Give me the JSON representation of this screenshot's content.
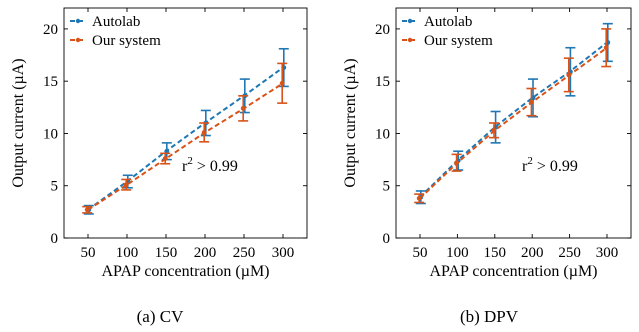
{
  "chart_data": [
    {
      "type": "line",
      "panel": "a",
      "caption": "(a) CV",
      "xlabel": "APAP concentration (µM)",
      "ylabel": "Output current (µA)",
      "x": [
        50,
        100,
        150,
        200,
        250,
        300
      ],
      "xticks": [
        "50",
        "100",
        "150",
        "200",
        "250",
        "300"
      ],
      "yticks": [
        0,
        5,
        10,
        15,
        20
      ],
      "ylim": [
        0,
        22
      ],
      "grid": false,
      "legend_position": "top-left",
      "annotation": {
        "base": "r",
        "sup": "2",
        "rest": " > 0.99"
      },
      "series": [
        {
          "name": "Autolab",
          "color": "#1f77b4",
          "values": [
            2.7,
            5.4,
            8.3,
            11.0,
            13.6,
            16.3
          ],
          "errors": [
            0.4,
            0.6,
            0.8,
            1.2,
            1.6,
            1.8
          ]
        },
        {
          "name": "Our system",
          "color": "#d95319",
          "values": [
            2.7,
            5.1,
            7.6,
            10.1,
            12.4,
            14.8
          ],
          "errors": [
            0.3,
            0.5,
            0.5,
            0.9,
            1.2,
            1.9
          ]
        }
      ]
    },
    {
      "type": "line",
      "panel": "b",
      "caption": "(b) DPV",
      "xlabel": "APAP concentration (µM)",
      "ylabel": "Output current (µA)",
      "x": [
        50,
        100,
        150,
        200,
        250,
        300
      ],
      "xticks": [
        "50",
        "100",
        "150",
        "200",
        "250",
        "300"
      ],
      "yticks": [
        0,
        5,
        10,
        15,
        20
      ],
      "ylim": [
        0,
        22
      ],
      "grid": false,
      "legend_position": "top-left",
      "annotation": {
        "base": "r",
        "sup": "2",
        "rest": " > 0.99"
      },
      "series": [
        {
          "name": "Autolab",
          "color": "#1f77b4",
          "values": [
            3.9,
            7.4,
            10.6,
            13.4,
            15.9,
            18.7
          ],
          "errors": [
            0.6,
            0.9,
            1.5,
            1.8,
            2.3,
            1.8
          ]
        },
        {
          "name": "Our system",
          "color": "#d95319",
          "values": [
            3.8,
            7.2,
            10.3,
            13.0,
            15.6,
            18.2
          ],
          "errors": [
            0.4,
            0.8,
            0.7,
            1.3,
            1.6,
            1.8
          ]
        }
      ]
    }
  ]
}
